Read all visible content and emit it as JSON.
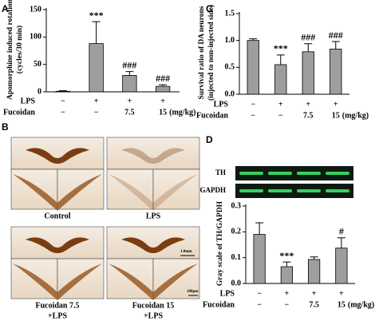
{
  "chart_data": [
    {
      "type": "bar",
      "panel_label": "A",
      "ylabel": [
        "Apomorphine induced rotation",
        "(cycles/30 min)"
      ],
      "values": [
        1,
        88,
        30,
        10
      ],
      "errors": [
        1,
        40,
        7,
        3
      ],
      "annotations": [
        null,
        "***",
        "###",
        "###"
      ],
      "color": "#9e9e9e",
      "ylim": [
        0,
        150
      ],
      "yticks": [
        0,
        50,
        100,
        150
      ],
      "x_table": {
        "rows": [
          {
            "label": "LPS",
            "cells": [
              "−",
              "+",
              "+",
              "+"
            ]
          },
          {
            "label": "Fucoidan",
            "cells": [
              "−",
              "−",
              "7.5",
              "15"
            ]
          }
        ],
        "unit": "(mg/kg)"
      }
    },
    {
      "type": "bar",
      "panel_label": "C",
      "ylabel": [
        "Survival ratio of DA neurons",
        "(injected to non-injected side)"
      ],
      "values": [
        1.0,
        0.55,
        0.79,
        0.84
      ],
      "errors": [
        0.03,
        0.18,
        0.15,
        0.14
      ],
      "annotations": [
        null,
        "***",
        "###",
        "###"
      ],
      "color": "#9e9e9e",
      "ylim": [
        0,
        1.5
      ],
      "yticks": [
        {
          "value": 0,
          "label": "0.0"
        },
        {
          "value": 0.5,
          "label": "0.5"
        },
        {
          "value": 1,
          "label": "1.0"
        },
        {
          "value": 1.5,
          "label": "1.5"
        }
      ],
      "x_table": {
        "rows": [
          {
            "label": "LPS",
            "cells": [
              "−",
              "+",
              "+",
              "+"
            ]
          },
          {
            "label": "Fucoidan",
            "cells": [
              "−",
              "−",
              "7.5",
              "15"
            ]
          }
        ],
        "unit": "(mg/kg)"
      }
    },
    {
      "type": "bar",
      "panel_label": "D",
      "blot_labels": [
        "TH",
        "GAPDH"
      ],
      "ylabel": [
        "Gray scale of TH/GAPDH"
      ],
      "values": [
        0.19,
        0.065,
        0.093,
        0.137
      ],
      "errors": [
        0.045,
        0.018,
        0.01,
        0.04
      ],
      "annotations": [
        null,
        "***",
        null,
        "#"
      ],
      "color": "#9e9e9e",
      "ylim": [
        0,
        0.3
      ],
      "yticks": [
        {
          "value": 0,
          "label": "0.0"
        },
        {
          "value": 0.1,
          "label": "0.1"
        },
        {
          "value": 0.2,
          "label": "0.2"
        },
        {
          "value": 0.3,
          "label": "0.3"
        }
      ],
      "x_table": {
        "rows": [
          {
            "label": "LPS",
            "cells": [
              "−",
              "+",
              "+",
              "+"
            ]
          },
          {
            "label": "Fucoidan",
            "cells": [
              "−",
              "−",
              "7.5",
              "15"
            ]
          }
        ],
        "unit": "(mg/kg)"
      }
    }
  ],
  "panel_b": {
    "panel_label": "B",
    "images": [
      {
        "caption": [
          "Control"
        ]
      },
      {
        "caption": [
          "LPS"
        ]
      },
      {
        "caption": [
          "Fucoidan 7.5",
          "+LPS"
        ]
      },
      {
        "caption": [
          "Fucoidan 15",
          "+LPS"
        ]
      }
    ],
    "scale_bars": [
      "1.0mm",
      "100μm"
    ]
  }
}
